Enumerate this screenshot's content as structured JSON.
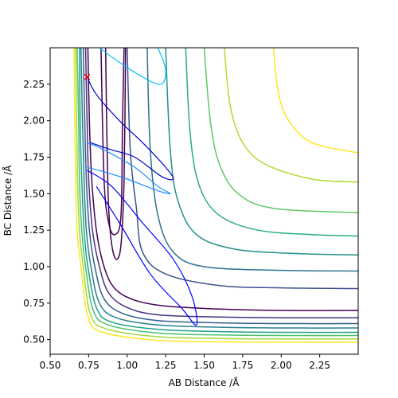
{
  "chart_data": {
    "type": "line",
    "title": "",
    "xlabel": "AB Distance /Å",
    "ylabel": "BC Distance /Å",
    "xlim": [
      0.5,
      2.5
    ],
    "ylim": [
      0.4,
      2.5
    ],
    "x_ticks": [
      {
        "value": 0.5,
        "label": "0.50"
      },
      {
        "value": 0.75,
        "label": "0.75"
      },
      {
        "value": 1.0,
        "label": "1.00"
      },
      {
        "value": 1.25,
        "label": "1.25"
      },
      {
        "value": 1.5,
        "label": "1.50"
      },
      {
        "value": 1.75,
        "label": "1.75"
      },
      {
        "value": 2.0,
        "label": "2.00"
      },
      {
        "value": 2.25,
        "label": "2.25"
      }
    ],
    "y_ticks": [
      {
        "value": 0.5,
        "label": "0.50"
      },
      {
        "value": 0.75,
        "label": "0.75"
      },
      {
        "value": 1.0,
        "label": "1.00"
      },
      {
        "value": 1.25,
        "label": "1.25"
      },
      {
        "value": 1.5,
        "label": "1.50"
      },
      {
        "value": 1.75,
        "label": "1.75"
      },
      {
        "value": 2.0,
        "label": "2.00"
      },
      {
        "value": 2.25,
        "label": "2.25"
      }
    ],
    "grid": false,
    "legend": false,
    "colormap": "viridis",
    "contour_levels": [
      {
        "name": "",
        "color": "#440154",
        "points": [
          [
            0.745,
            2.5
          ],
          [
            0.755,
            2.0
          ],
          [
            0.77,
            1.6
          ],
          [
            0.8,
            1.25
          ],
          [
            0.85,
            1.0
          ],
          [
            0.92,
            0.85
          ],
          [
            1.05,
            0.77
          ],
          [
            1.25,
            0.73
          ],
          [
            1.6,
            0.71
          ],
          [
            2.0,
            0.7
          ],
          [
            2.5,
            0.7
          ]
        ]
      },
      {
        "name": "",
        "color": "#46327e",
        "points": [
          [
            0.73,
            2.5
          ],
          [
            0.74,
            2.0
          ],
          [
            0.75,
            1.6
          ],
          [
            0.775,
            1.25
          ],
          [
            0.82,
            1.0
          ],
          [
            0.88,
            0.82
          ],
          [
            1.0,
            0.72
          ],
          [
            1.2,
            0.67
          ],
          [
            1.6,
            0.655
          ],
          [
            2.0,
            0.65
          ],
          [
            2.5,
            0.65
          ]
        ]
      },
      {
        "name": "",
        "color": "#365c8d",
        "points": [
          [
            0.715,
            2.5
          ],
          [
            0.725,
            2.0
          ],
          [
            0.735,
            1.6
          ],
          [
            0.755,
            1.25
          ],
          [
            0.79,
            1.0
          ],
          [
            0.85,
            0.78
          ],
          [
            0.97,
            0.68
          ],
          [
            1.2,
            0.63
          ],
          [
            1.6,
            0.615
          ],
          [
            2.0,
            0.61
          ],
          [
            2.5,
            0.61
          ]
        ]
      },
      {
        "name": "",
        "color": "#277f8e",
        "points": [
          [
            0.7,
            2.5
          ],
          [
            0.71,
            2.0
          ],
          [
            0.72,
            1.6
          ],
          [
            0.735,
            1.25
          ],
          [
            0.765,
            1.0
          ],
          [
            0.82,
            0.75
          ],
          [
            0.93,
            0.65
          ],
          [
            1.2,
            0.6
          ],
          [
            1.6,
            0.585
          ],
          [
            2.0,
            0.58
          ],
          [
            2.5,
            0.58
          ]
        ]
      },
      {
        "name": "",
        "color": "#1fa187",
        "points": [
          [
            0.69,
            2.5
          ],
          [
            0.695,
            2.0
          ],
          [
            0.705,
            1.6
          ],
          [
            0.72,
            1.25
          ],
          [
            0.745,
            1.0
          ],
          [
            0.8,
            0.72
          ],
          [
            0.9,
            0.62
          ],
          [
            1.2,
            0.57
          ],
          [
            1.6,
            0.555
          ],
          [
            2.0,
            0.55
          ],
          [
            2.5,
            0.55
          ]
        ]
      },
      {
        "name": "",
        "color": "#4ac16d",
        "points": [
          [
            0.675,
            2.5
          ],
          [
            0.685,
            2.0
          ],
          [
            0.69,
            1.6
          ],
          [
            0.705,
            1.25
          ],
          [
            0.73,
            1.0
          ],
          [
            0.78,
            0.7
          ],
          [
            0.88,
            0.6
          ],
          [
            1.2,
            0.545
          ],
          [
            1.6,
            0.532
          ],
          [
            2.0,
            0.528
          ],
          [
            2.5,
            0.528
          ]
        ]
      },
      {
        "name": "",
        "color": "#a0da39",
        "points": [
          [
            0.665,
            2.5
          ],
          [
            0.672,
            2.0
          ],
          [
            0.678,
            1.6
          ],
          [
            0.69,
            1.25
          ],
          [
            0.715,
            1.0
          ],
          [
            0.76,
            0.68
          ],
          [
            0.86,
            0.575
          ],
          [
            1.2,
            0.52
          ],
          [
            1.6,
            0.508
          ],
          [
            2.0,
            0.505
          ],
          [
            2.5,
            0.505
          ]
        ]
      },
      {
        "name": "",
        "color": "#fde725",
        "points": [
          [
            0.655,
            2.5
          ],
          [
            0.66,
            2.0
          ],
          [
            0.665,
            1.6
          ],
          [
            0.675,
            1.25
          ],
          [
            0.7,
            1.0
          ],
          [
            0.745,
            0.66
          ],
          [
            0.84,
            0.55
          ],
          [
            1.2,
            0.495
          ],
          [
            1.6,
            0.485
          ],
          [
            2.0,
            0.482
          ],
          [
            2.5,
            0.482
          ]
        ]
      },
      {
        "name": "",
        "color": "#3b528b",
        "points": [
          [
            1.0,
            2.5
          ],
          [
            1.02,
            1.8
          ],
          [
            1.06,
            1.4
          ],
          [
            1.1,
            1.1
          ],
          [
            1.25,
            0.95
          ],
          [
            1.6,
            0.87
          ],
          [
            2.0,
            0.855
          ],
          [
            2.5,
            0.85
          ]
        ]
      },
      {
        "name": "",
        "color": "#2c728e",
        "points": [
          [
            1.13,
            2.5
          ],
          [
            1.15,
            1.8
          ],
          [
            1.2,
            1.35
          ],
          [
            1.3,
            1.1
          ],
          [
            1.5,
            1.0
          ],
          [
            2.0,
            0.975
          ],
          [
            2.5,
            0.97
          ]
        ]
      },
      {
        "name": "",
        "color": "#21918c",
        "points": [
          [
            1.25,
            2.5
          ],
          [
            1.28,
            1.8
          ],
          [
            1.33,
            1.45
          ],
          [
            1.45,
            1.22
          ],
          [
            1.7,
            1.12
          ],
          [
            2.1,
            1.09
          ],
          [
            2.5,
            1.08
          ]
        ]
      },
      {
        "name": "",
        "color": "#28ae80",
        "points": [
          [
            1.38,
            2.5
          ],
          [
            1.41,
            1.9
          ],
          [
            1.47,
            1.55
          ],
          [
            1.6,
            1.35
          ],
          [
            1.85,
            1.25
          ],
          [
            2.2,
            1.22
          ],
          [
            2.5,
            1.21
          ]
        ]
      },
      {
        "name": "",
        "color": "#5ec962",
        "points": [
          [
            1.5,
            2.5
          ],
          [
            1.54,
            2.0
          ],
          [
            1.6,
            1.7
          ],
          [
            1.72,
            1.5
          ],
          [
            1.95,
            1.4
          ],
          [
            2.5,
            1.37
          ]
        ]
      },
      {
        "name": "",
        "color": "#addc30",
        "points": [
          [
            1.63,
            2.5
          ],
          [
            1.67,
            2.1
          ],
          [
            1.75,
            1.85
          ],
          [
            1.9,
            1.7
          ],
          [
            2.2,
            1.6
          ],
          [
            2.5,
            1.58
          ]
        ]
      },
      {
        "name": "",
        "color": "#fde725",
        "points": [
          [
            1.95,
            2.5
          ],
          [
            1.98,
            2.2
          ],
          [
            2.05,
            2.0
          ],
          [
            2.2,
            1.85
          ],
          [
            2.5,
            1.78
          ]
        ]
      },
      {
        "name": "",
        "color": "#440154",
        "points": [
          [
            0.86,
            2.5
          ],
          [
            0.87,
            1.8
          ],
          [
            0.88,
            1.4
          ],
          [
            0.9,
            1.15
          ],
          [
            0.93,
            1.05
          ],
          [
            0.96,
            1.15
          ],
          [
            0.98,
            1.6
          ],
          [
            0.99,
            2.5
          ]
        ]
      },
      {
        "name": "",
        "color": "#440154",
        "points": [
          [
            0.83,
            2.5
          ],
          [
            0.85,
            1.6
          ],
          [
            0.88,
            1.3
          ],
          [
            0.92,
            1.22
          ],
          [
            0.96,
            1.35
          ],
          [
            0.97,
            2.0
          ],
          [
            0.98,
            2.5
          ]
        ]
      }
    ],
    "trajectories": [
      {
        "name": "",
        "color": "#0000cd",
        "points": [
          [
            0.74,
            2.3
          ],
          [
            0.8,
            2.18
          ],
          [
            0.95,
            2.0
          ],
          [
            1.1,
            1.85
          ],
          [
            1.25,
            1.68
          ],
          [
            1.3,
            1.6
          ],
          [
            1.22,
            1.62
          ],
          [
            1.05,
            1.75
          ],
          [
            0.9,
            1.8
          ],
          [
            0.76,
            1.85
          ]
        ]
      },
      {
        "name": "",
        "color": "#1e90ff",
        "points": [
          [
            0.74,
            1.85
          ],
          [
            0.85,
            1.8
          ],
          [
            1.05,
            1.68
          ],
          [
            1.2,
            1.55
          ],
          [
            1.28,
            1.5
          ],
          [
            1.2,
            1.52
          ],
          [
            1.0,
            1.6
          ],
          [
            0.85,
            1.65
          ],
          [
            0.74,
            1.68
          ]
        ]
      },
      {
        "name": "",
        "color": "#0000ff",
        "points": [
          [
            0.74,
            1.66
          ],
          [
            0.9,
            1.55
          ],
          [
            1.1,
            1.3
          ],
          [
            1.3,
            1.05
          ],
          [
            1.42,
            0.8
          ],
          [
            1.45,
            0.6
          ],
          [
            1.35,
            0.72
          ],
          [
            1.15,
            0.95
          ],
          [
            0.95,
            1.3
          ],
          [
            0.8,
            1.55
          ]
        ]
      },
      {
        "name": "",
        "color": "#00bfff",
        "points": [
          [
            0.82,
            2.5
          ],
          [
            0.95,
            2.4
          ],
          [
            1.1,
            2.3
          ],
          [
            1.22,
            2.25
          ],
          [
            1.25,
            2.35
          ],
          [
            1.2,
            2.5
          ]
        ]
      }
    ],
    "annotations": [
      {
        "marker": "x",
        "x": 0.74,
        "y": 2.3,
        "color": "#ff0000"
      }
    ]
  }
}
